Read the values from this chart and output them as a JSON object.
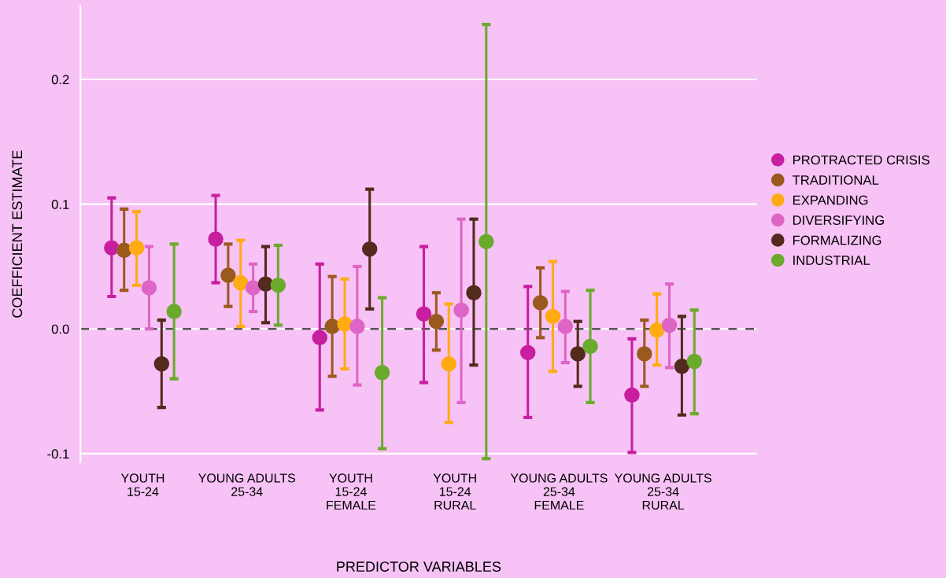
{
  "chart_data": {
    "type": "scatter",
    "xlabel": "PREDICTOR VARIABLES",
    "ylabel": "COEFFICIENT ESTIMATE",
    "categories": [
      "YOUTH\n15-24",
      "YOUNG ADULTS\n25-34",
      "YOUTH\n15-24\nFEMALE",
      "YOUTH\n15-24\nRURAL",
      "YOUNG ADULTS\n25-34\nFEMALE",
      "YOUNG ADULTS\n25-34\nRURAL"
    ],
    "series": [
      {
        "name": "PROTRACTED CRISIS",
        "color": "#c71fa0",
        "values": [
          0.065,
          0.072,
          -0.007,
          0.012,
          -0.019,
          -0.053
        ],
        "errors": [
          [
            0.026,
            0.105
          ],
          [
            0.037,
            0.107
          ],
          [
            -0.065,
            0.052
          ],
          [
            -0.043,
            0.066
          ],
          [
            -0.071,
            0.034
          ],
          [
            -0.099,
            -0.008
          ]
        ]
      },
      {
        "name": "TRADITIONAL",
        "color": "#9a5a1e",
        "values": [
          0.063,
          0.043,
          0.002,
          0.006,
          0.021,
          -0.02
        ],
        "errors": [
          [
            0.031,
            0.096
          ],
          [
            0.018,
            0.068
          ],
          [
            -0.038,
            0.042
          ],
          [
            -0.017,
            0.029
          ],
          [
            -0.007,
            0.049
          ],
          [
            -0.046,
            0.007
          ]
        ]
      },
      {
        "name": "EXPANDING",
        "color": "#ffab13",
        "values": [
          0.065,
          0.037,
          0.004,
          -0.028,
          0.01,
          -0.001
        ],
        "errors": [
          [
            0.035,
            0.094
          ],
          [
            0.002,
            0.071
          ],
          [
            -0.032,
            0.04
          ],
          [
            -0.075,
            0.02
          ],
          [
            -0.034,
            0.054
          ],
          [
            -0.029,
            0.028
          ]
        ]
      },
      {
        "name": "DIVERSIFYING",
        "color": "#de65c5",
        "values": [
          0.033,
          0.033,
          0.002,
          0.015,
          0.002,
          0.003
        ],
        "errors": [
          [
            0.0,
            0.066
          ],
          [
            0.014,
            0.052
          ],
          [
            -0.045,
            0.05
          ],
          [
            -0.059,
            0.088
          ],
          [
            -0.027,
            0.03
          ],
          [
            -0.031,
            0.036
          ]
        ]
      },
      {
        "name": "FORMALIZING",
        "color": "#522a1e",
        "values": [
          -0.028,
          0.036,
          0.064,
          0.029,
          -0.02,
          -0.03
        ],
        "errors": [
          [
            -0.063,
            0.007
          ],
          [
            0.005,
            0.066
          ],
          [
            0.016,
            0.112
          ],
          [
            -0.029,
            0.088
          ],
          [
            -0.046,
            0.006
          ],
          [
            -0.069,
            0.01
          ]
        ]
      },
      {
        "name": "INDUSTRIAL",
        "color": "#6aaa2c",
        "values": [
          0.014,
          0.035,
          -0.035,
          0.07,
          -0.014,
          -0.026
        ],
        "errors": [
          [
            -0.04,
            0.068
          ],
          [
            0.003,
            0.067
          ],
          [
            -0.096,
            0.025
          ],
          [
            -0.104,
            0.244
          ],
          [
            -0.059,
            0.031
          ],
          [
            -0.068,
            0.015
          ]
        ]
      }
    ],
    "ylim": [
      -0.107,
      0.259
    ],
    "yticks": [
      0.2,
      0.1,
      {
        "value": 0.0,
        "label": "0.0"
      },
      -0.1
    ],
    "ref_lines": [
      {
        "axis": "y",
        "value": 0.0,
        "color": "#333333",
        "line_style": "dashed"
      }
    ],
    "grid": "y",
    "legend": "right",
    "marker": "circle"
  }
}
